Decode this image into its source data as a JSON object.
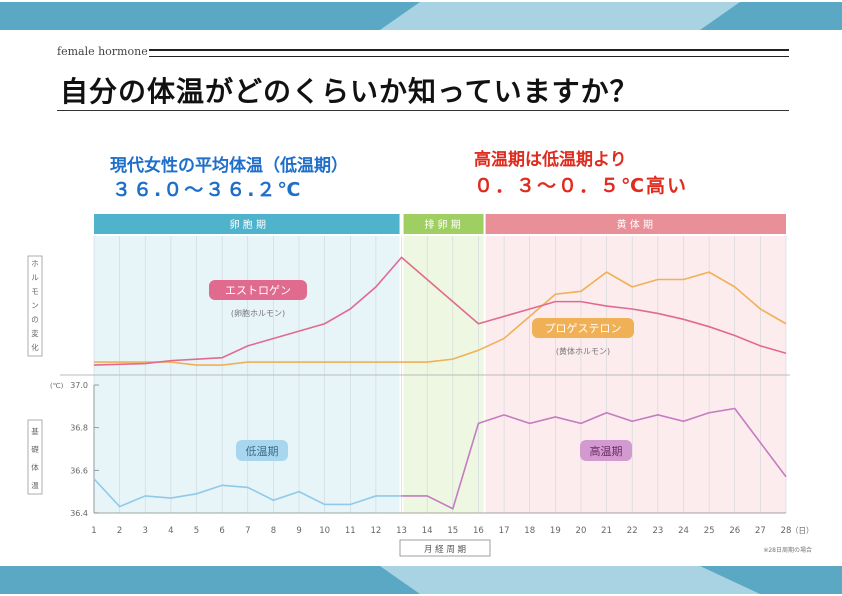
{
  "slide": {
    "kicker": "female hormone",
    "title": "自分の体温がどのくらいか知っていますか？",
    "note_low_label": "現代女性の平均体温（低温期）",
    "note_low_value": "３６.０～３６.２℃",
    "note_high_label": "高温期は低温期より",
    "note_high_value": "０．３～０．５℃高い",
    "colors": {
      "banner_dark": "#5aa8c4",
      "banner_light": "#a9d3e2",
      "note_blue": "#1e6fc9",
      "note_red": "#e02b1f"
    }
  },
  "chart_data": {
    "type": "line",
    "x": [
      1,
      2,
      3,
      4,
      5,
      6,
      7,
      8,
      9,
      10,
      11,
      12,
      13,
      14,
      15,
      16,
      17,
      18,
      19,
      20,
      21,
      22,
      23,
      24,
      25,
      26,
      27,
      28
    ],
    "x_tick_labels": [
      "1",
      "2",
      "3",
      "4",
      "5",
      "6",
      "7",
      "8",
      "9",
      "10",
      "11",
      "12",
      "13",
      "14",
      "15",
      "16",
      "17",
      "18",
      "19",
      "20",
      "21",
      "22",
      "23",
      "24",
      "25",
      "26",
      "27",
      "28"
    ],
    "x_unit": "（日）",
    "xlabel": "月 経 周 期",
    "footnote": "※28日周期の場合",
    "phases": [
      {
        "label": "卵 胞 期",
        "from": 1,
        "to": 13,
        "color": "#4fb3cc"
      },
      {
        "label": "排 卵 期",
        "from": 13,
        "to": 16.2,
        "color": "#9fcf62"
      },
      {
        "label": "黄 体 期",
        "from": 16.2,
        "to": 28,
        "color": "#e88f97"
      }
    ],
    "hormone_panel": {
      "axis_label": "ホルモンの変化",
      "series": [
        {
          "name": "エストロゲン",
          "sub": "(卵胞ホルモン)",
          "color": "#e06b8f",
          "values": [
            2,
            2.5,
            3,
            5,
            6,
            7,
            15,
            20,
            25,
            30,
            40,
            55,
            75,
            60,
            45,
            30,
            35,
            40,
            45,
            45,
            42,
            40,
            37,
            33,
            28,
            22,
            15,
            10
          ]
        },
        {
          "name": "プロゲステロン",
          "sub": "(黄体ホルモン)",
          "color": "#f0b055",
          "values": [
            4,
            4,
            4,
            4,
            2,
            2,
            4,
            4,
            4,
            4,
            4,
            4,
            4,
            4,
            6,
            12,
            20,
            35,
            50,
            52,
            65,
            55,
            60,
            60,
            65,
            55,
            40,
            30
          ]
        }
      ]
    },
    "temperature_panel": {
      "axis_label": "基礎体温",
      "y_unit": "(℃)",
      "ylim": [
        36.4,
        37.0
      ],
      "y_ticks": [
        "37.0",
        "36.8",
        "36.6",
        "36.4"
      ],
      "series": [
        {
          "name": "低温期",
          "color": "#8fcae8",
          "x": [
            1,
            2,
            3,
            4,
            5,
            6,
            7,
            8,
            9,
            10,
            11,
            12,
            13
          ],
          "values": [
            36.56,
            36.43,
            36.48,
            36.47,
            36.49,
            36.53,
            36.52,
            36.46,
            36.5,
            36.44,
            36.44,
            36.48,
            36.48
          ]
        },
        {
          "name": "",
          "color": "#c57cc0",
          "x": [
            13,
            14,
            15,
            16,
            17
          ],
          "values": [
            36.48,
            36.48,
            36.42,
            36.82,
            36.86
          ]
        },
        {
          "name": "高温期",
          "color": "#c57cc0",
          "x": [
            17,
            18,
            19,
            20,
            21,
            22,
            23,
            24,
            25,
            26,
            27,
            28
          ],
          "values": [
            36.86,
            36.82,
            36.85,
            36.82,
            36.87,
            36.83,
            36.86,
            36.83,
            36.87,
            36.89,
            36.73,
            36.57
          ]
        }
      ]
    }
  }
}
